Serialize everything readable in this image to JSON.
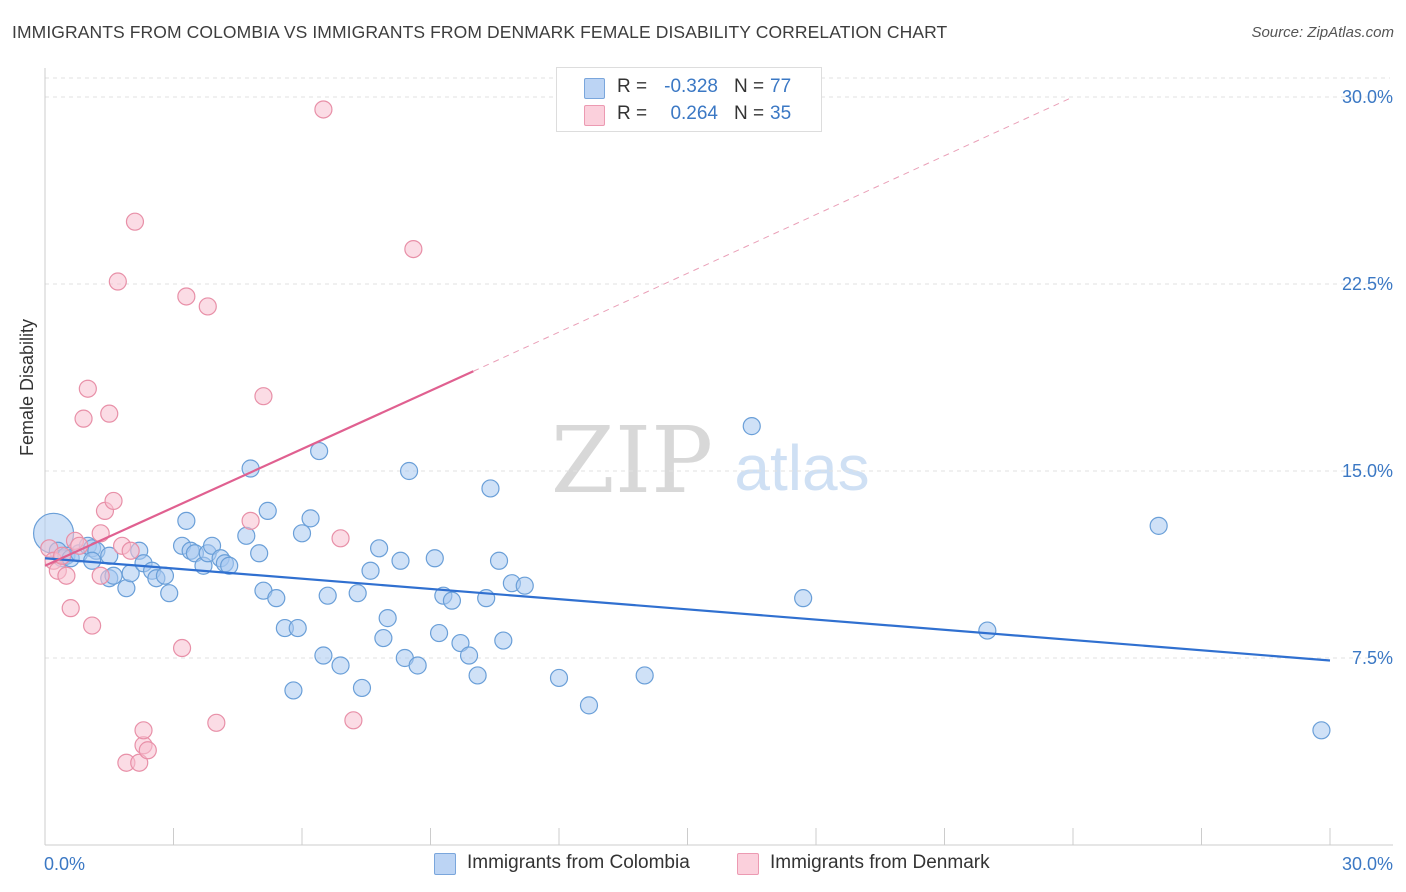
{
  "title": "IMMIGRANTS FROM COLOMBIA VS IMMIGRANTS FROM DENMARK FEMALE DISABILITY CORRELATION CHART",
  "source": "Source: ZipAtlas.com",
  "watermark": {
    "zip": "ZIP",
    "atlas": "atlas"
  },
  "legend": {
    "rows": [
      {
        "r_label": "R =",
        "r_value": "-0.328",
        "n_label": "N =",
        "n_value": "77",
        "color": "#a8c8f0",
        "border": "#6a9fd8"
      },
      {
        "r_label": "R =",
        "r_value": "0.264",
        "n_label": "N =",
        "n_value": "35",
        "color": "#f8c0d0",
        "border": "#e890a8"
      }
    ]
  },
  "chart_data": {
    "type": "scatter",
    "title": "IMMIGRANTS FROM COLOMBIA VS IMMIGRANTS FROM DENMARK FEMALE DISABILITY CORRELATION CHART",
    "xlabel": "",
    "ylabel": "Female Disability",
    "xlim": [
      0,
      30
    ],
    "ylim": [
      0,
      30.5
    ],
    "x_tick_labels": [
      "0.0%",
      "30.0%"
    ],
    "y_ticks": [
      7.5,
      15.0,
      22.5,
      30.0
    ],
    "y_tick_labels": [
      "7.5%",
      "15.0%",
      "22.5%",
      "30.0%"
    ],
    "grid": true,
    "legend_position": "top-center",
    "series": [
      {
        "name": "Immigrants from Colombia",
        "color": "#6a9fd8",
        "fill": "#a8c8f0",
        "trend": {
          "x": [
            0,
            30
          ],
          "y": [
            11.5,
            7.4
          ],
          "color": "#3070d0"
        },
        "points": [
          [
            0.2,
            12.5
          ],
          [
            0.3,
            11.8
          ],
          [
            0.4,
            11.5
          ],
          [
            0.5,
            11.6
          ],
          [
            0.6,
            11.5
          ],
          [
            0.8,
            11.7
          ],
          [
            1.0,
            12.0
          ],
          [
            1.1,
            11.9
          ],
          [
            1.2,
            11.8
          ],
          [
            1.1,
            11.4
          ],
          [
            1.5,
            11.6
          ],
          [
            1.5,
            10.7
          ],
          [
            1.6,
            10.8
          ],
          [
            1.9,
            10.3
          ],
          [
            2.0,
            10.9
          ],
          [
            2.2,
            11.8
          ],
          [
            2.3,
            11.3
          ],
          [
            2.5,
            11.0
          ],
          [
            2.6,
            10.7
          ],
          [
            2.8,
            10.8
          ],
          [
            2.9,
            10.1
          ],
          [
            3.2,
            12.0
          ],
          [
            3.3,
            13.0
          ],
          [
            3.4,
            11.8
          ],
          [
            3.5,
            11.7
          ],
          [
            3.7,
            11.2
          ],
          [
            3.8,
            11.7
          ],
          [
            3.9,
            12.0
          ],
          [
            4.1,
            11.5
          ],
          [
            4.2,
            11.3
          ],
          [
            4.3,
            11.2
          ],
          [
            4.7,
            12.4
          ],
          [
            4.8,
            15.1
          ],
          [
            5.0,
            11.7
          ],
          [
            5.1,
            10.2
          ],
          [
            5.2,
            13.4
          ],
          [
            5.4,
            9.9
          ],
          [
            5.6,
            8.7
          ],
          [
            5.8,
            6.2
          ],
          [
            5.9,
            8.7
          ],
          [
            6.0,
            12.5
          ],
          [
            6.2,
            13.1
          ],
          [
            6.4,
            15.8
          ],
          [
            6.5,
            7.6
          ],
          [
            6.6,
            10.0
          ],
          [
            6.9,
            7.2
          ],
          [
            7.3,
            10.1
          ],
          [
            7.4,
            6.3
          ],
          [
            7.6,
            11.0
          ],
          [
            7.8,
            11.9
          ],
          [
            7.9,
            8.3
          ],
          [
            8.0,
            9.1
          ],
          [
            8.3,
            11.4
          ],
          [
            8.4,
            7.5
          ],
          [
            8.5,
            15.0
          ],
          [
            8.7,
            7.2
          ],
          [
            9.1,
            11.5
          ],
          [
            9.2,
            8.5
          ],
          [
            9.3,
            10.0
          ],
          [
            9.5,
            9.8
          ],
          [
            9.7,
            8.1
          ],
          [
            9.9,
            7.6
          ],
          [
            10.1,
            6.8
          ],
          [
            10.3,
            9.9
          ],
          [
            10.4,
            14.3
          ],
          [
            10.6,
            11.4
          ],
          [
            10.7,
            8.2
          ],
          [
            10.9,
            10.5
          ],
          [
            11.2,
            10.4
          ],
          [
            12.0,
            6.7
          ],
          [
            12.7,
            5.6
          ],
          [
            14.0,
            6.8
          ],
          [
            16.5,
            16.8
          ],
          [
            17.7,
            9.9
          ],
          [
            22.0,
            8.6
          ],
          [
            26.0,
            12.8
          ],
          [
            29.8,
            4.6
          ]
        ]
      },
      {
        "name": "Immigrants from Denmark",
        "color": "#e890a8",
        "fill": "#f8c0d0",
        "trend": {
          "x": [
            0,
            10
          ],
          "y": [
            11.2,
            19.0
          ],
          "dashed_to": [
            24,
            30.0
          ],
          "color": "#e06090"
        },
        "points": [
          [
            0.1,
            11.9
          ],
          [
            0.2,
            11.4
          ],
          [
            0.3,
            11.0
          ],
          [
            0.4,
            11.6
          ],
          [
            0.5,
            10.8
          ],
          [
            0.6,
            9.5
          ],
          [
            0.7,
            12.2
          ],
          [
            0.8,
            12.0
          ],
          [
            0.9,
            17.1
          ],
          [
            1.0,
            18.3
          ],
          [
            1.1,
            8.8
          ],
          [
            1.3,
            12.5
          ],
          [
            1.3,
            10.8
          ],
          [
            1.4,
            13.4
          ],
          [
            1.5,
            17.3
          ],
          [
            1.6,
            13.8
          ],
          [
            1.7,
            22.6
          ],
          [
            1.8,
            12.0
          ],
          [
            1.9,
            3.3
          ],
          [
            2.0,
            11.8
          ],
          [
            2.1,
            25.0
          ],
          [
            2.2,
            3.3
          ],
          [
            2.3,
            4.0
          ],
          [
            2.3,
            4.6
          ],
          [
            2.4,
            3.8
          ],
          [
            3.2,
            7.9
          ],
          [
            3.3,
            22.0
          ],
          [
            3.8,
            21.6
          ],
          [
            4.0,
            4.9
          ],
          [
            4.8,
            13.0
          ],
          [
            5.1,
            18.0
          ],
          [
            6.5,
            29.5
          ],
          [
            6.9,
            12.3
          ],
          [
            7.2,
            5.0
          ],
          [
            8.6,
            23.9
          ]
        ]
      }
    ]
  },
  "bottom_legend": [
    {
      "label": "Immigrants from Colombia",
      "color": "#a8c8f0",
      "border": "#6a9fd8"
    },
    {
      "label": "Immigrants from Denmark",
      "color": "#f8c0d0",
      "border": "#e890a8"
    }
  ]
}
